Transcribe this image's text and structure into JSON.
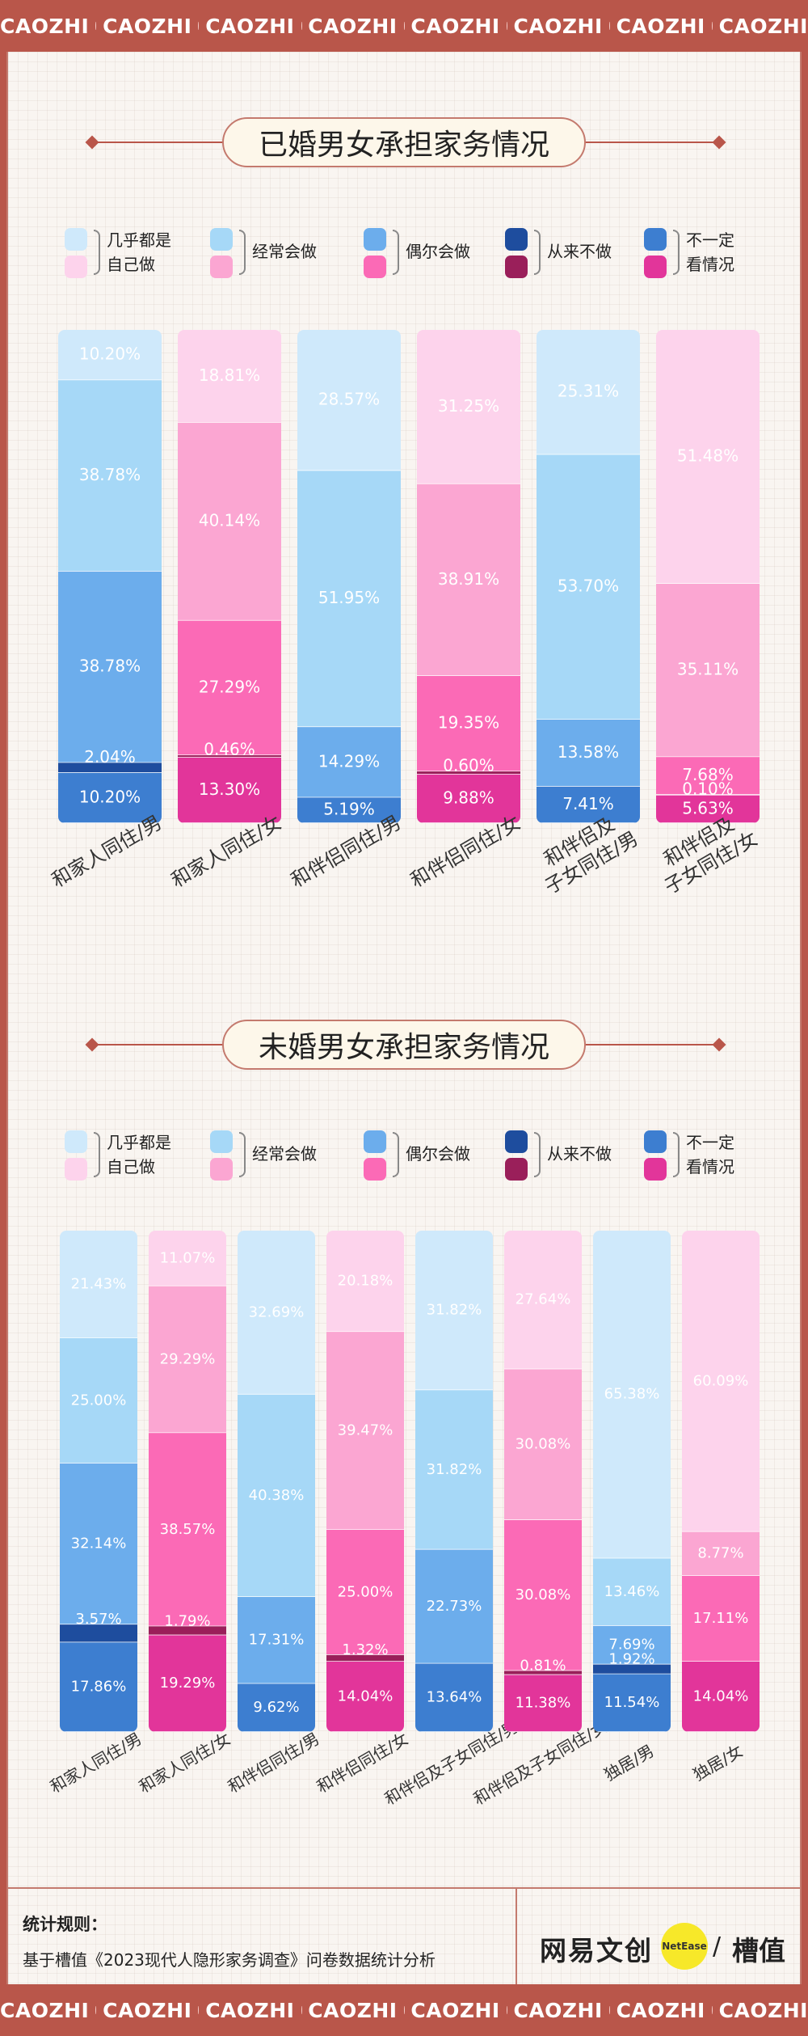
{
  "banner": {
    "word": "CAOZHI"
  },
  "colors": {
    "male": [
      "#cfe9fb",
      "#a6d8f7",
      "#6cadec",
      "#1e4d9e",
      "#3d7ed0"
    ],
    "female": [
      "#fdd3ec",
      "#fba6d2",
      "#fb6ab6",
      "#9a1f5a",
      "#e2359a"
    ]
  },
  "legend": [
    {
      "label1": "几乎都是",
      "label2": "自己做"
    },
    {
      "label1": "经常会做",
      "label2": ""
    },
    {
      "label1": "偶尔会做",
      "label2": ""
    },
    {
      "label1": "从来不做",
      "label2": ""
    },
    {
      "label1": "不一定",
      "label2": "看情况"
    }
  ],
  "chart_data": [
    {
      "type": "bar",
      "stacked": true,
      "title": "已婚男女承担家务情况",
      "categories": [
        "和家人同住/男",
        "和家人同住/女",
        "和伴侣同住/男",
        "和伴侣同住/女",
        "和伴侣及\n子女同住/男",
        "和伴侣及\n子女同住/女"
      ],
      "series": [
        {
          "name": "几乎都是自己做",
          "values": [
            10.2,
            18.81,
            28.57,
            31.25,
            25.31,
            51.48
          ]
        },
        {
          "name": "经常会做",
          "values": [
            38.78,
            40.14,
            51.95,
            38.91,
            53.7,
            35.11
          ]
        },
        {
          "name": "偶尔会做",
          "values": [
            38.78,
            27.29,
            14.29,
            19.35,
            13.58,
            7.68
          ]
        },
        {
          "name": "从来不做",
          "values": [
            2.04,
            0.46,
            0,
            0.6,
            0,
            0.1
          ]
        },
        {
          "name": "不一定看情况",
          "values": [
            10.2,
            13.3,
            5.19,
            9.88,
            7.41,
            5.63
          ]
        }
      ],
      "labels": [
        [
          "10.20%",
          "38.78%",
          "38.78%",
          "2.04%",
          "10.20%"
        ],
        [
          "18.81%",
          "40.14%",
          "27.29%",
          "0.46%",
          "13.30%"
        ],
        [
          "28.57%",
          "51.95%",
          "14.29%",
          "",
          "5.19%"
        ],
        [
          "31.25%",
          "38.91%",
          "19.35%",
          "0.60%",
          "9.88%"
        ],
        [
          "25.31%",
          "53.70%",
          "13.58%",
          "",
          "7.41%"
        ],
        [
          "51.48%",
          "35.11%",
          "7.68%",
          "0.10%",
          "5.63%"
        ]
      ],
      "genders": [
        "m",
        "f",
        "m",
        "f",
        "m",
        "f"
      ]
    },
    {
      "type": "bar",
      "stacked": true,
      "title": "未婚男女承担家务情况",
      "categories": [
        "和家人同住/男",
        "和家人同住/女",
        "和伴侣同住/男",
        "和伴侣同住/女",
        "和伴侣及子女同住/男",
        "和伴侣及子女同住/女",
        "独居/男",
        "独居/女"
      ],
      "series": [
        {
          "name": "几乎都是自己做",
          "values": [
            21.43,
            11.07,
            32.69,
            20.18,
            31.82,
            27.64,
            65.38,
            60.09
          ]
        },
        {
          "name": "经常会做",
          "values": [
            25.0,
            29.29,
            40.38,
            39.47,
            31.82,
            30.08,
            13.46,
            8.77
          ]
        },
        {
          "name": "偶尔会做",
          "values": [
            32.14,
            38.57,
            17.31,
            25.0,
            22.73,
            30.08,
            7.69,
            17.11
          ]
        },
        {
          "name": "从来不做",
          "values": [
            3.57,
            1.79,
            0,
            1.32,
            0,
            0.81,
            1.92,
            0
          ]
        },
        {
          "name": "不一定看情况",
          "values": [
            17.86,
            19.29,
            9.62,
            14.04,
            13.64,
            11.38,
            11.54,
            14.04
          ]
        }
      ],
      "labels": [
        [
          "21.43%",
          "25.00%",
          "32.14%",
          "3.57%",
          "17.86%"
        ],
        [
          "11.07%",
          "29.29%",
          "38.57%",
          "1.79%",
          "19.29%"
        ],
        [
          "32.69%",
          "40.38%",
          "17.31%",
          "",
          "9.62%"
        ],
        [
          "20.18%",
          "39.47%",
          "25.00%",
          "1.32%",
          "14.04%"
        ],
        [
          "31.82%",
          "31.82%",
          "22.73%",
          "",
          "13.64%"
        ],
        [
          "27.64%",
          "30.08%",
          "30.08%",
          "0.81%",
          "11.38%"
        ],
        [
          "65.38%",
          "13.46%",
          "7.69%",
          "1.92%",
          "11.54%"
        ],
        [
          "60.09%",
          "8.77%",
          "17.11%",
          "",
          "14.04%"
        ]
      ],
      "genders": [
        "m",
        "f",
        "m",
        "f",
        "m",
        "f",
        "m",
        "f"
      ]
    }
  ],
  "footer": {
    "rule_title": "统计规则：",
    "rule_text": "基于槽值《2023现代人隐形家务调查》问卷数据统计分析",
    "logo1": "网易文创",
    "logo_badge": "NetEase",
    "logo_sep": "/",
    "logo2": "槽值"
  }
}
